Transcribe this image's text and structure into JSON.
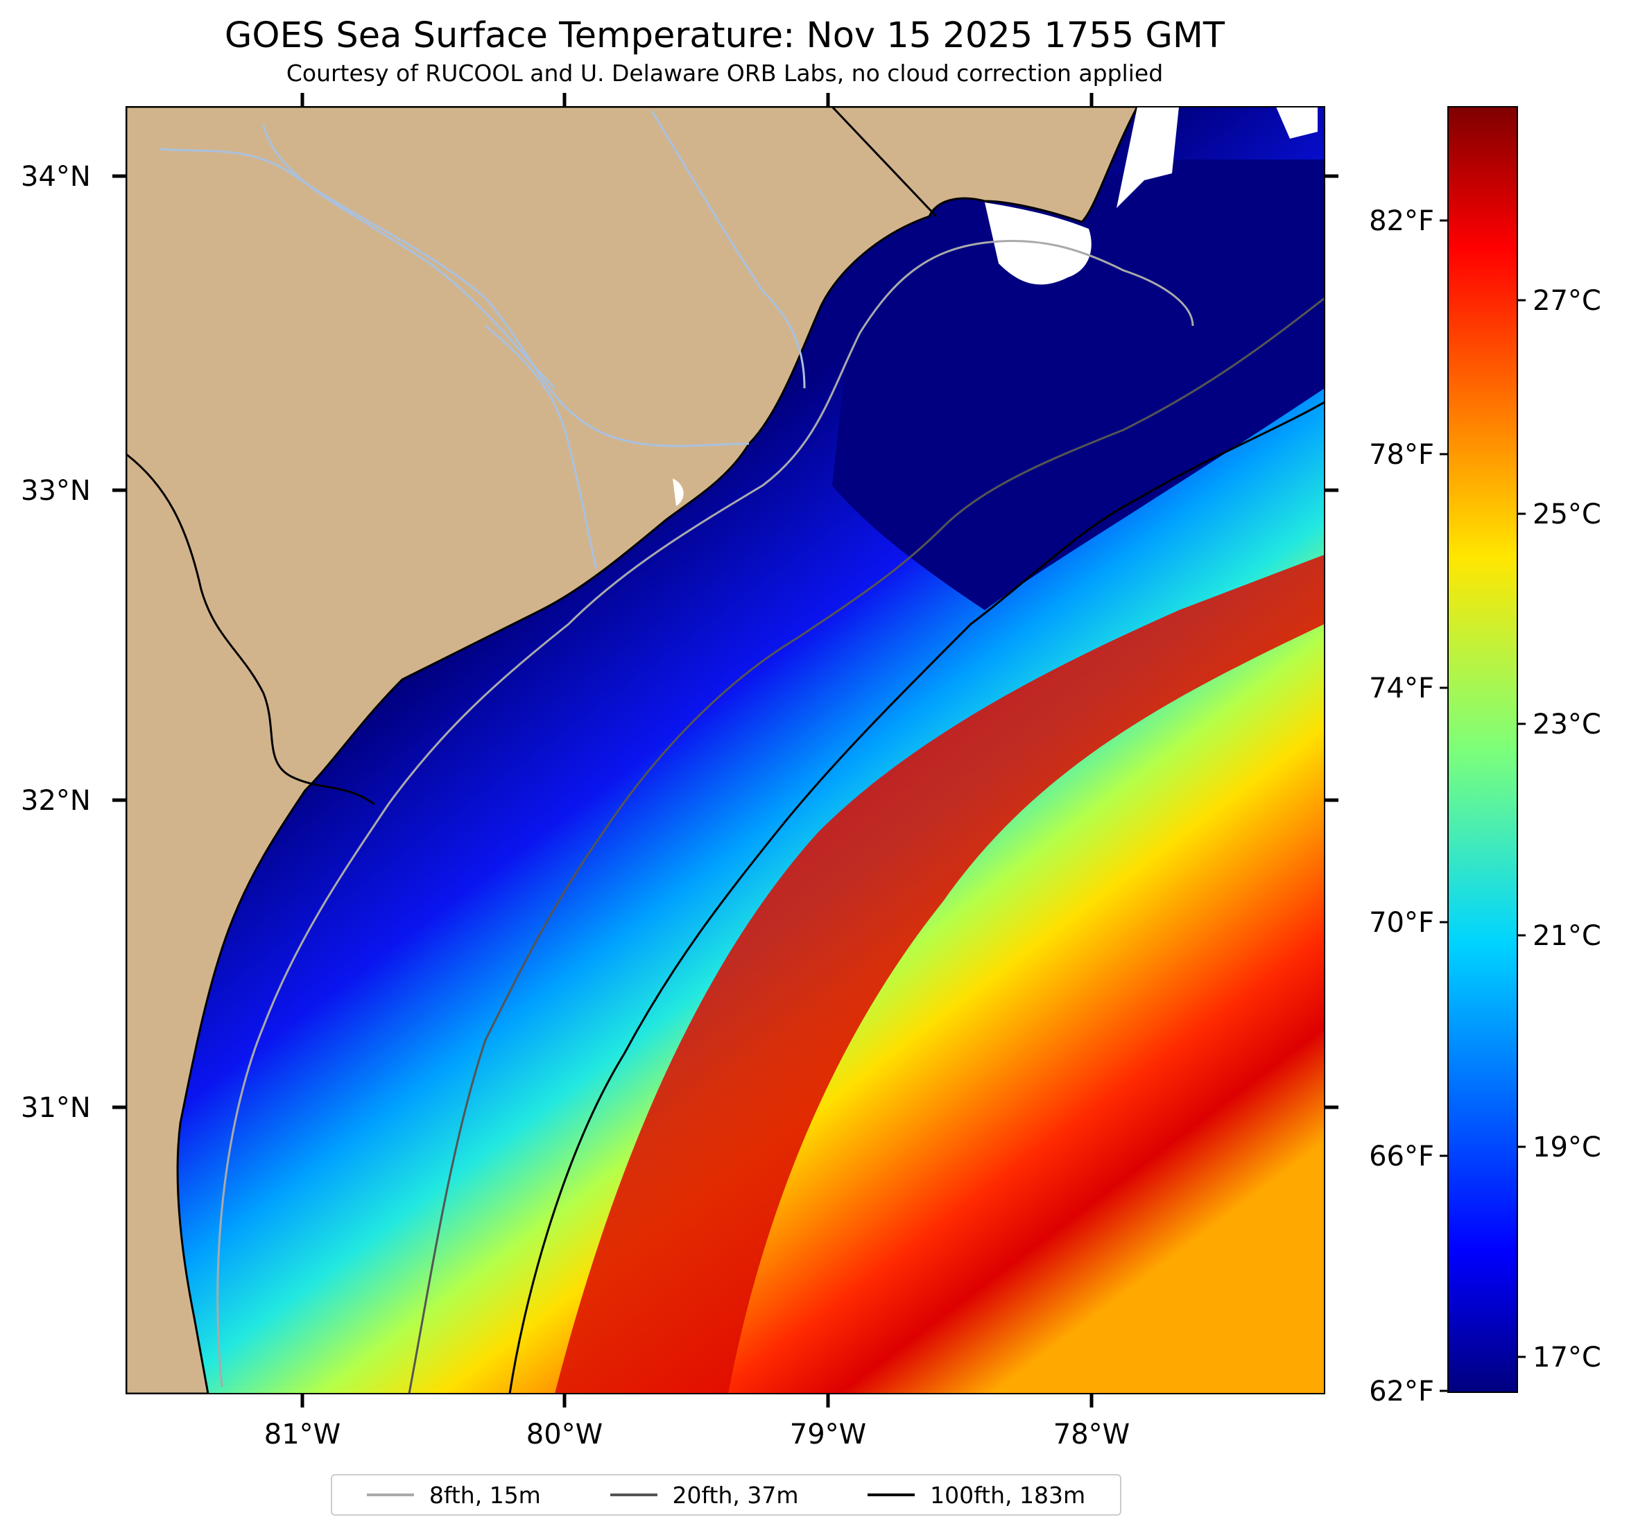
{
  "title": "GOES Sea Surface Temperature: Nov 15 2025 1755 GMT",
  "subtitle": "Courtesy of RUCOOL and U. Delaware ORB Labs, no cloud correction applied",
  "lat_labels": [
    "34°N",
    "33°N",
    "32°N",
    "31°N"
  ],
  "lon_labels": [
    "81°W",
    "80°W",
    "79°W",
    "78°W"
  ],
  "colorbar": {
    "fahrenheit_labels": [
      "82°F",
      "78°F",
      "74°F",
      "70°F",
      "66°F",
      "62°F"
    ],
    "celsius_labels": [
      "27°C",
      "25°C",
      "23°C",
      "21°C",
      "19°C",
      "17°C"
    ]
  },
  "legend": [
    {
      "label": "8fth, 15m",
      "color": "#aaaaaa"
    },
    {
      "label": "20fth, 37m",
      "color": "#555555"
    },
    {
      "label": "100fth, 183m",
      "color": "#000000"
    }
  ],
  "colors": {
    "land": "#d2b48c",
    "coastline": "#000000",
    "rivers": "#a9c1e0",
    "cloud": "#ffffff"
  }
}
